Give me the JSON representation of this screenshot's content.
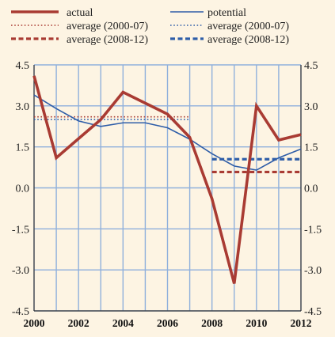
{
  "chart_data": {
    "type": "line",
    "x": [
      2000,
      2001,
      2002,
      2003,
      2004,
      2005,
      2006,
      2007,
      2008,
      2009,
      2010,
      2011,
      2012
    ],
    "series": [
      {
        "name": "actual",
        "color": "#a93b33",
        "style": "solid-thick",
        "values": [
          4.1,
          1.1,
          1.8,
          2.5,
          3.5,
          3.1,
          2.7,
          1.85,
          -0.4,
          -3.5,
          3.0,
          1.75,
          1.95
        ]
      },
      {
        "name": "potential",
        "color": "#2e5da8",
        "style": "solid-thin",
        "values": [
          3.4,
          2.9,
          2.45,
          2.25,
          2.38,
          2.38,
          2.2,
          1.78,
          1.25,
          0.8,
          0.65,
          1.1,
          1.42
        ]
      }
    ],
    "averages": [
      {
        "name": "average (2000-07)",
        "of": "actual",
        "from": 2000,
        "to": 2007,
        "value": 2.6,
        "color": "#a93b33",
        "style": "dotted"
      },
      {
        "name": "average (2008-12)",
        "of": "actual",
        "from": 2008,
        "to": 2012,
        "value": 0.58,
        "color": "#a93b33",
        "style": "dashed"
      },
      {
        "name": "average (2000-07)",
        "of": "potential",
        "from": 2000,
        "to": 2007,
        "value": 2.5,
        "color": "#2e5da8",
        "style": "dotted"
      },
      {
        "name": "average (2008-12)",
        "of": "potential",
        "from": 2008,
        "to": 2012,
        "value": 1.05,
        "color": "#2e5da8",
        "style": "dashed"
      }
    ],
    "legend": {
      "placement": "top",
      "left": [
        {
          "label": "actual",
          "color": "#a93b33",
          "style": "solid-thick"
        },
        {
          "label": "average (2000-07)",
          "color": "#a93b33",
          "style": "dotted"
        },
        {
          "label": "average (2008-12)",
          "color": "#a93b33",
          "style": "dashed"
        }
      ],
      "right": [
        {
          "label": "potential",
          "color": "#2e5da8",
          "style": "solid-thin"
        },
        {
          "label": "average (2000-07)",
          "color": "#2e5da8",
          "style": "dotted"
        },
        {
          "label": "average (2008-12)",
          "color": "#2e5da8",
          "style": "dashed"
        }
      ]
    },
    "ylim": [
      -4.5,
      4.5
    ],
    "yticks": [
      "4.5",
      "3.0",
      "1.5",
      "0.0",
      "-1.5",
      "-3.0",
      "-4.5"
    ],
    "ytick_values": [
      4.5,
      3.0,
      1.5,
      0.0,
      -1.5,
      -3.0,
      -4.5
    ],
    "xticks": [
      "2000",
      "2002",
      "2004",
      "2006",
      "2008",
      "2010",
      "2012"
    ],
    "xtick_values": [
      2000,
      2002,
      2004,
      2006,
      2008,
      2010,
      2012
    ],
    "grid": true,
    "grid_color": "#8fb0dc",
    "background_color": "#fdf4e3",
    "y_axis_labels_both_sides": true
  }
}
